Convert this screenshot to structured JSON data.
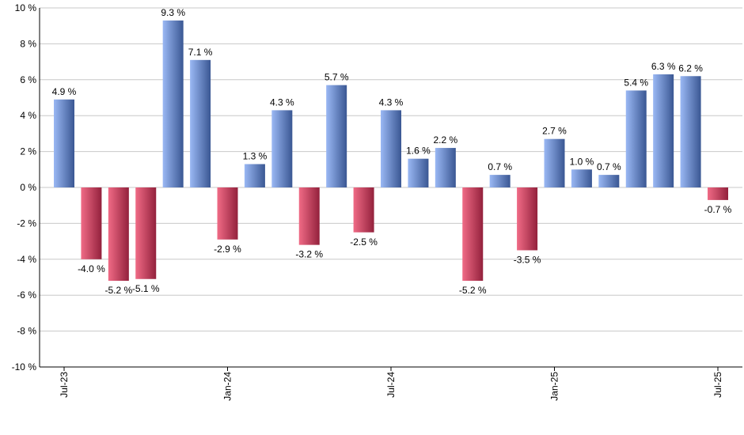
{
  "chart_data": {
    "type": "bar",
    "title": "",
    "xlabel": "",
    "ylabel": "",
    "ylim": [
      -10,
      10
    ],
    "y_ticks": [
      10,
      8,
      6,
      4,
      2,
      0,
      -2,
      -4,
      -6,
      -8,
      -10
    ],
    "y_tick_labels": [
      "10 %",
      "8 %",
      "6 %",
      "4 %",
      "2 %",
      "0 %",
      "-2 %",
      "-4 %",
      "-6 %",
      "-8 %",
      "-10 %"
    ],
    "grid": true,
    "categories": [
      "2023-07",
      "2023-08",
      "2023-09",
      "2023-10",
      "2023-11",
      "2023-12",
      "2024-01",
      "2024-02",
      "2024-03",
      "2024-04",
      "2024-05",
      "2024-06",
      "2024-07",
      "2024-08",
      "2024-09",
      "2024-10",
      "2024-11",
      "2024-12",
      "2025-01",
      "2025-02",
      "2025-03",
      "2025-04",
      "2025-05",
      "2025-06",
      "2025-07"
    ],
    "values": [
      4.9,
      -4.0,
      -5.2,
      -5.1,
      9.3,
      7.1,
      -2.9,
      1.3,
      4.3,
      -3.2,
      5.7,
      -2.5,
      4.3,
      1.6,
      2.2,
      -5.2,
      0.7,
      -3.5,
      2.7,
      1.0,
      0.7,
      5.4,
      6.3,
      6.2,
      -0.7
    ],
    "data_labels": [
      "4.9 %",
      "-4.0 %",
      "-5.2 %",
      "-5.1 %",
      "9.3 %",
      "7.1 %",
      "-2.9 %",
      "1.3 %",
      "4.3 %",
      "-3.2 %",
      "5.7 %",
      "-2.5 %",
      "4.3 %",
      "1.6 %",
      "2.2 %",
      "-5.2 %",
      "0.7 %",
      "-3.5 %",
      "2.7 %",
      "1.0 %",
      "0.7 %",
      "5.4 %",
      "6.3 %",
      "6.2 %",
      "-0.7 %"
    ],
    "x_ticks": [
      {
        "category": "2023-07",
        "label": "Jul-23"
      },
      {
        "category": "2024-01",
        "label": "Jan-24"
      },
      {
        "category": "2024-07",
        "label": "Jul-24"
      },
      {
        "category": "2025-01",
        "label": "Jan-25"
      },
      {
        "category": "2025-07",
        "label": "Jul-25"
      }
    ],
    "colors": {
      "positive_light": "#9ab8f4",
      "positive_dark": "#3a5793",
      "negative_light": "#f06b86",
      "negative_dark": "#93213c",
      "grid": "#c8c8c8",
      "axis": "#000000"
    }
  }
}
